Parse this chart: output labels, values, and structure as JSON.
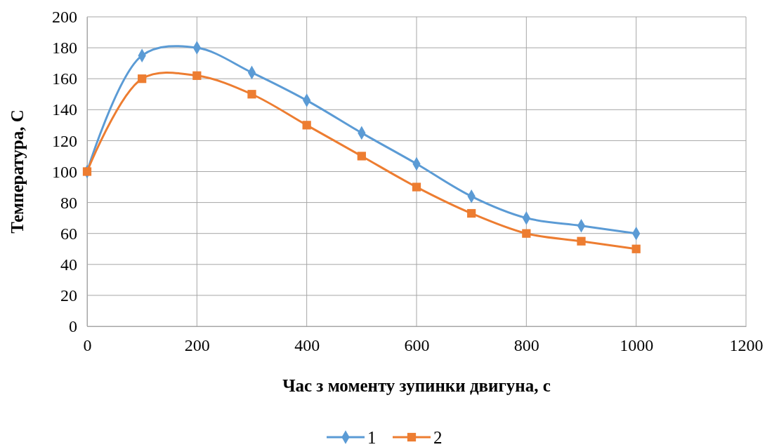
{
  "chart_data": {
    "type": "line",
    "xlabel": "Час з моменту зупинки двигуна, с",
    "ylabel": "Температура, С",
    "x": [
      0,
      100,
      200,
      300,
      400,
      500,
      600,
      700,
      800,
      900,
      1000
    ],
    "series": [
      {
        "name": "1",
        "color": "#5b9bd5",
        "marker": "diamond",
        "values": [
          100,
          175,
          180,
          164,
          146,
          125,
          105,
          84,
          70,
          65,
          60
        ]
      },
      {
        "name": "2",
        "color": "#ed7d31",
        "marker": "square",
        "values": [
          100,
          160,
          162,
          150,
          130,
          110,
          90,
          73,
          60,
          55,
          50
        ]
      }
    ],
    "xlim": [
      0,
      1200
    ],
    "xticks": [
      0,
      200,
      400,
      600,
      800,
      1000,
      1200
    ],
    "ylim": [
      0,
      200
    ],
    "yticks": [
      0,
      20,
      40,
      60,
      80,
      100,
      120,
      140,
      160,
      180,
      200
    ],
    "grid": true,
    "legend": "bottom"
  }
}
